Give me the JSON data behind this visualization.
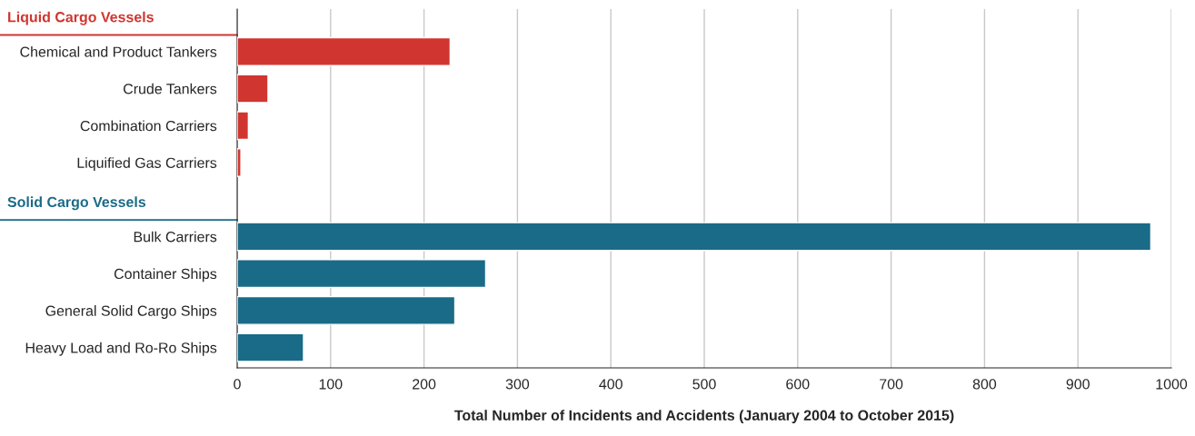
{
  "chart_data": {
    "type": "bar",
    "orientation": "horizontal",
    "categories": [
      "Chemical and Product Tankers",
      "Crude Tankers",
      "Combination Carriers",
      "Liquified Gas Carriers",
      "Bulk Carriers",
      "Container Ships",
      "General Solid Cargo Ships",
      "Heavy Load and Ro-Ro Ships"
    ],
    "series": [
      {
        "name": "Liquid Cargo Vessels",
        "color": "#d13530",
        "values": [
          228,
          33,
          12,
          4,
          null,
          null,
          null,
          null
        ]
      },
      {
        "name": "Solid Cargo Vessels",
        "color": "#1a6b87",
        "values": [
          null,
          null,
          null,
          null,
          978,
          266,
          233,
          71
        ]
      }
    ],
    "xlabel": "Total Number of Incidents and Accidents (January 2004 to October 2015)",
    "xlim": [
      0,
      1000
    ],
    "xticks": [
      0,
      100,
      200,
      300,
      400,
      500,
      600,
      700,
      800,
      900,
      1000
    ],
    "grid": "x",
    "legend": false
  }
}
